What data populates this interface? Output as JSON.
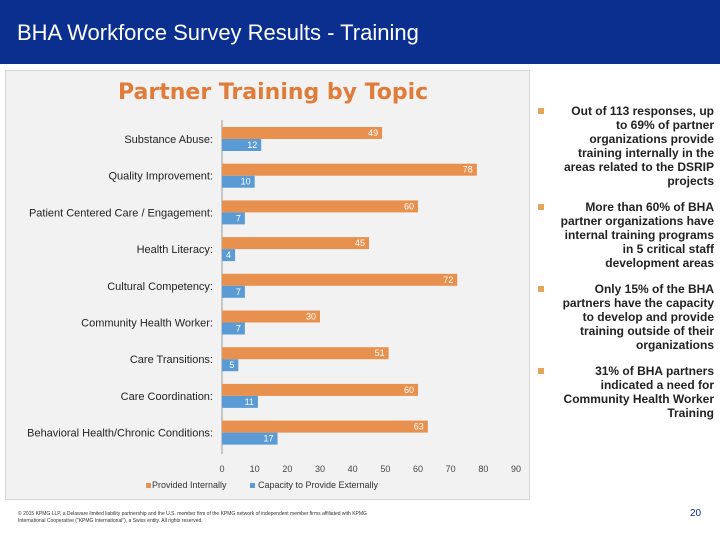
{
  "header": {
    "title": "BHA Workforce Survey Results - Training"
  },
  "colors": {
    "header_bg": "#0a2f8f",
    "provided": "#e8914f",
    "capacity": "#5b9bd5",
    "title": "#e07b39"
  },
  "chart_data": {
    "type": "bar",
    "title": "Partner Training by Topic",
    "categories": [
      "Substance Abuse:",
      "Quality Improvement:",
      "Patient Centered Care / Engagement:",
      "Health Literacy:",
      "Cultural Competency:",
      "Community Health Worker:",
      "Care Transitions:",
      "Care Coordination:",
      "Behavioral Health/Chronic Conditions:"
    ],
    "series": [
      {
        "name": "Provided Internally",
        "values": [
          49,
          78,
          60,
          45,
          72,
          30,
          51,
          60,
          63
        ]
      },
      {
        "name": "Capacity to Provide Externally",
        "values": [
          12,
          10,
          7,
          4,
          7,
          7,
          5,
          11,
          17
        ]
      }
    ],
    "xlim": [
      0,
      90
    ],
    "xticks": [
      "0",
      "10",
      "20",
      "30",
      "40",
      "50",
      "60",
      "70",
      "80",
      "90"
    ],
    "legend": "bottom",
    "orientation": "horizontal"
  },
  "bullets": [
    "Out of 113 responses, up to 69% of partner organizations provide training internally in the areas related to the DSRIP projects",
    "More than 60% of BHA partner organizations have internal training programs in 5 critical staff development areas",
    "Only 15% of the BHA partners have the capacity to develop and provide training outside of their organizations",
    "31% of BHA partners indicated a need for Community Health Worker Training"
  ],
  "footer": {
    "note": "© 2015 KPMG LLP, a Delaware limited liability partnership and the U.S. member firm of the KPMG network of independent member firms affiliated with KPMG International Cooperative (\"KPMG International\"), a Swiss entity. All rights reserved.",
    "page": "20"
  }
}
